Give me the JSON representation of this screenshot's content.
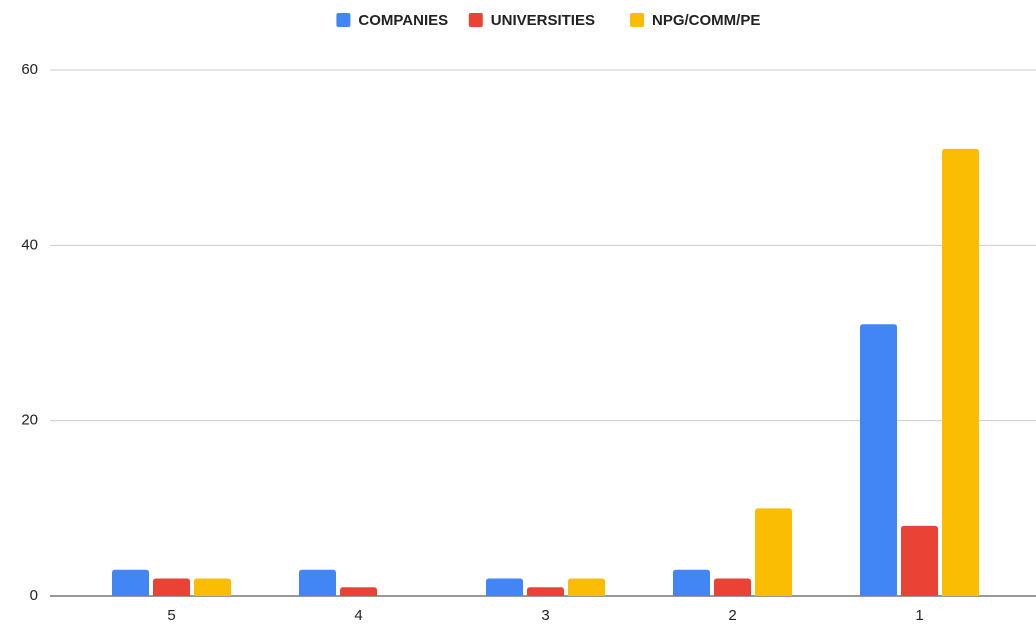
{
  "chart_data": {
    "type": "bar",
    "categories": [
      "5",
      "4",
      "3",
      "2",
      "1"
    ],
    "series": [
      {
        "name": "COMPANIES",
        "color": "#4285f4",
        "values": [
          3,
          3,
          2,
          3,
          31
        ]
      },
      {
        "name": "UNIVERSITIES",
        "color": "#ea4335",
        "values": [
          2,
          1,
          1,
          2,
          8
        ]
      },
      {
        "name": "NPG/COMM/PE",
        "color": "#fbbc04",
        "values": [
          2,
          0,
          2,
          10,
          51
        ]
      }
    ],
    "ylim": [
      0,
      60
    ],
    "yticks": [
      0,
      20,
      40,
      60
    ],
    "grid": true,
    "legend": "top"
  }
}
